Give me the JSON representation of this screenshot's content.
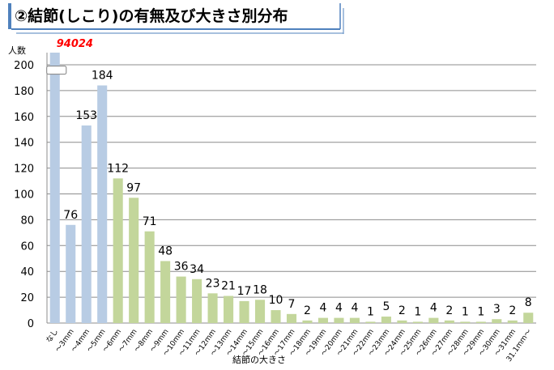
{
  "header": {
    "title": "②結節(しこり)の有無及び大きさ別分布"
  },
  "chart_data": {
    "type": "bar",
    "ylabel": "人数",
    "xlabel": "結節の大きさ",
    "ylim": [
      0,
      200
    ],
    "yticks": [
      0,
      20,
      40,
      60,
      80,
      100,
      120,
      140,
      160,
      180,
      200
    ],
    "grid": true,
    "axis_break": true,
    "categories": [
      "なし",
      "～3mm",
      "～4mm",
      "～5mm",
      "～6mm",
      "～7mm",
      "～8mm",
      "～9mm",
      "～10mm",
      "～11mm",
      "～12mm",
      "～13mm",
      "～14mm",
      "～15mm",
      "～16mm",
      "～17mm",
      "～18mm",
      "～19mm",
      "～20mm",
      "～21mm",
      "～22mm",
      "～23mm",
      "～24mm",
      "～25mm",
      "～26mm",
      "～27mm",
      "～28mm",
      "～29mm",
      "～30mm",
      "～31mm",
      "31.1mm～"
    ],
    "values": [
      94024,
      76,
      153,
      184,
      112,
      97,
      71,
      48,
      36,
      34,
      23,
      21,
      17,
      18,
      10,
      7,
      2,
      4,
      4,
      4,
      1,
      5,
      2,
      1,
      4,
      2,
      1,
      1,
      3,
      2,
      8
    ],
    "value_labels": [
      "94024",
      "76",
      "153",
      "184",
      "112",
      "97",
      "71",
      "48",
      "36",
      "34",
      "23",
      "21",
      "17",
      "18",
      "10",
      "7",
      "2",
      "4",
      "4",
      "4",
      "1",
      "5",
      "2",
      "1",
      "4",
      "2",
      "1",
      "1",
      "3",
      "2",
      "8"
    ],
    "colors": {
      "blue": "#b8cce4",
      "green": "#c3d69b",
      "highlight_label": "#ff0000",
      "title_bar": "#4f81bd"
    },
    "blue_bars": [
      0,
      1,
      2,
      3
    ]
  }
}
